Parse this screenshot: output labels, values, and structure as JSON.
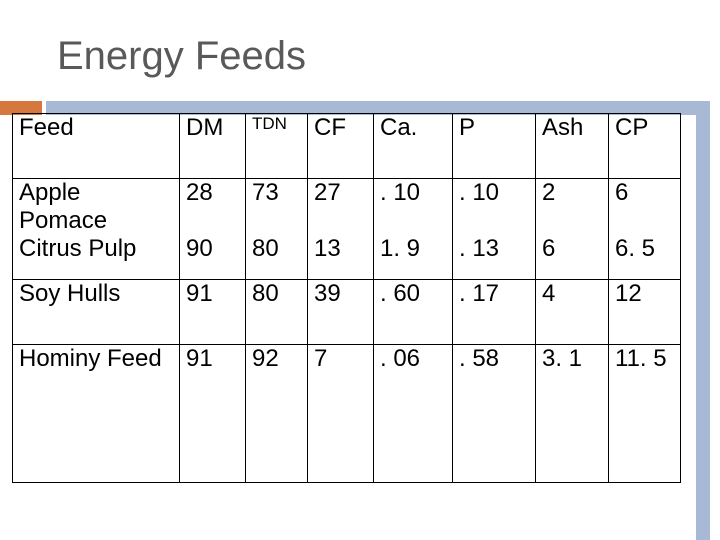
{
  "title": "Energy Feeds",
  "colors": {
    "accent_orange": "#d5773f",
    "accent_blue": "#a7b9d4",
    "title_gray": "#595959"
  },
  "table": {
    "headers": [
      "Feed",
      "DM",
      "TDN",
      "CF",
      "Ca.",
      "P",
      "Ash",
      "CP"
    ],
    "rows": [
      [
        "Apple Pomace",
        "28",
        "73",
        "27",
        ". 10",
        ". 10",
        "2",
        "6"
      ],
      [
        "Citrus Pulp",
        "90",
        "80",
        "13",
        "1. 9",
        ". 13",
        "6",
        "6. 5"
      ],
      [
        "Soy Hulls",
        "91",
        "80",
        "39",
        ". 60",
        ". 17",
        "4",
        "12"
      ],
      [
        "Hominy Feed",
        "91",
        "92",
        "7",
        ". 06",
        ". 58",
        "3. 1",
        "11. 5"
      ]
    ]
  }
}
